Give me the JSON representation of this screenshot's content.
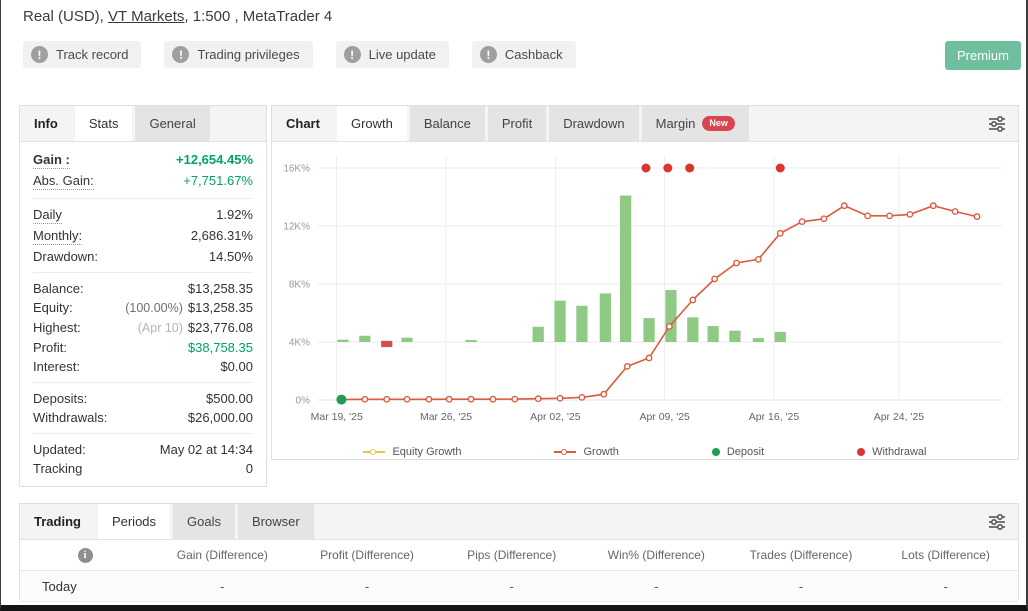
{
  "header": {
    "title_prefix": "Real (USD), ",
    "broker_link": "VT Markets",
    "title_suffix": ", 1:500 , MetaTrader 4",
    "badges": [
      "Track record",
      "Trading privileges",
      "Live update",
      "Cashback"
    ],
    "premium_label": "Premium"
  },
  "info_panel": {
    "tabs": [
      {
        "label": "Info",
        "type": "section"
      },
      {
        "label": "Stats",
        "state": "active"
      },
      {
        "label": "General",
        "state": "inactive"
      }
    ],
    "groups": [
      [
        {
          "label": "Gain :",
          "value": "+12,654.45%",
          "positive": true,
          "bold": true,
          "dotted": true
        },
        {
          "label": "Abs. Gain:",
          "value": "+7,751.67%",
          "positive": true,
          "dotted": true
        }
      ],
      [
        {
          "label": "Daily",
          "value": "1.92%",
          "dotted": true
        },
        {
          "label": "Monthly:",
          "value": "2,686.31%",
          "dotted": true
        },
        {
          "label": "Drawdown:",
          "value": "14.50%"
        }
      ],
      [
        {
          "label": "Balance:",
          "value": "$13,258.35"
        },
        {
          "label": "Equity:",
          "prefix": "(100.00%)",
          "prefix_dark": true,
          "value": "$13,258.35"
        },
        {
          "label": "Highest:",
          "prefix": "(Apr 10)",
          "value": "$23,776.08"
        },
        {
          "label": "Profit:",
          "value": "$38,758.35",
          "positive": true
        },
        {
          "label": "Interest:",
          "value": "$0.00"
        }
      ],
      [
        {
          "label": "Deposits:",
          "value": "$500.00"
        },
        {
          "label": "Withdrawals:",
          "value": "$26,000.00"
        }
      ],
      [
        {
          "label": "Updated:",
          "value": "May 02 at 14:34"
        },
        {
          "label": "Tracking",
          "value": "0"
        }
      ]
    ]
  },
  "chart_panel": {
    "tabs": [
      {
        "label": "Chart",
        "type": "section"
      },
      {
        "label": "Growth",
        "state": "active"
      },
      {
        "label": "Balance",
        "state": "inactive"
      },
      {
        "label": "Profit",
        "state": "inactive"
      },
      {
        "label": "Drawdown",
        "state": "inactive"
      },
      {
        "label": "Margin",
        "state": "inactive",
        "badge": "New"
      }
    ]
  },
  "chart_data": {
    "type": "line+bar",
    "title": "Growth",
    "grid": true,
    "x_axis": {
      "unit": "days since Mar 19 2025",
      "range": [
        -1.2,
        42.6
      ],
      "ticks": [
        {
          "d": 0,
          "label": "Mar 19, '25"
        },
        {
          "d": 7,
          "label": "Mar 26, '25"
        },
        {
          "d": 14,
          "label": "Apr 02, '25"
        },
        {
          "d": 21,
          "label": "Apr 09, '25"
        },
        {
          "d": 28,
          "label": "Apr 16, '25"
        },
        {
          "d": 36,
          "label": "Apr 24, '25"
        }
      ]
    },
    "y_axis": {
      "unit": "growth %",
      "range": [
        0,
        16000
      ],
      "ticks": [
        {
          "v": 0,
          "label": "0%"
        },
        {
          "v": 4000,
          "label": "4K%"
        },
        {
          "v": 8000,
          "label": "8K%"
        },
        {
          "v": 12000,
          "label": "12K%"
        },
        {
          "v": 16000,
          "label": "16K%"
        }
      ]
    },
    "growth_series": {
      "name": "Growth",
      "color": "#dd5a3c",
      "points": [
        [
          0.3,
          30
        ],
        [
          1.8,
          50
        ],
        [
          3.2,
          50
        ],
        [
          4.5,
          50
        ],
        [
          5.9,
          50
        ],
        [
          7.2,
          55
        ],
        [
          8.6,
          55
        ],
        [
          10,
          55
        ],
        [
          11.4,
          60
        ],
        [
          12.9,
          90
        ],
        [
          14.3,
          120
        ],
        [
          15.7,
          180
        ],
        [
          17.1,
          400
        ],
        [
          18.6,
          2320
        ],
        [
          20,
          2900
        ],
        [
          21.3,
          5070
        ],
        [
          22.8,
          6900
        ],
        [
          24.2,
          8350
        ],
        [
          25.6,
          9450
        ],
        [
          27,
          9700
        ],
        [
          28.4,
          11500
        ],
        [
          29.8,
          12300
        ],
        [
          31.2,
          12500
        ],
        [
          32.5,
          13400
        ],
        [
          34,
          12700
        ],
        [
          35.4,
          12700
        ],
        [
          36.7,
          12800
        ],
        [
          38.2,
          13400
        ],
        [
          39.6,
          13000
        ],
        [
          41,
          12650
        ]
      ]
    },
    "equity_bars": {
      "name": "Equity Growth",
      "baseline": 4000,
      "bar_width_days": 0.72,
      "positive_color": "#8fca85",
      "negative_color": "#d5504a",
      "positive": [
        [
          0.4,
          4160
        ],
        [
          1.8,
          4430
        ],
        [
          4.5,
          4300
        ],
        [
          8.6,
          4140
        ],
        [
          12.9,
          5050
        ],
        [
          14.3,
          6850
        ],
        [
          15.7,
          6500
        ],
        [
          17.2,
          7350
        ],
        [
          18.5,
          14100
        ],
        [
          20,
          5650
        ],
        [
          21.4,
          7580
        ],
        [
          22.8,
          5700
        ],
        [
          24.1,
          5100
        ],
        [
          25.5,
          4780
        ],
        [
          27,
          4270
        ],
        [
          28.4,
          4700
        ]
      ],
      "negative": [
        [
          3.2,
          3650,
          4080
        ]
      ]
    },
    "deposits": {
      "name": "Deposit",
      "color": "#1e9e4e",
      "points": [
        [
          0.3,
          30
        ]
      ]
    },
    "withdrawals": {
      "name": "Withdrawal",
      "color": "#d8362f",
      "points": [
        [
          19.8,
          16000
        ],
        [
          21.2,
          16000
        ],
        [
          22.6,
          16000
        ],
        [
          28.4,
          16000
        ]
      ]
    },
    "legend": [
      {
        "label": "Equity Growth",
        "swatch": "line",
        "color": "#e8c44d"
      },
      {
        "label": "Growth",
        "swatch": "line",
        "color": "#dd5a3c"
      },
      {
        "label": "Deposit",
        "swatch": "dot",
        "color": "#1e9e4e"
      },
      {
        "label": "Withdrawal",
        "swatch": "dot",
        "color": "#d8362f"
      }
    ]
  },
  "bottom_panel": {
    "tabs": [
      {
        "label": "Trading",
        "type": "section"
      },
      {
        "label": "Periods",
        "state": "active"
      },
      {
        "label": "Goals",
        "state": "inactive"
      },
      {
        "label": "Browser",
        "state": "inactive"
      }
    ],
    "table": {
      "columns": [
        "Gain (Difference)",
        "Profit (Difference)",
        "Pips (Difference)",
        "Win% (Difference)",
        "Trades (Difference)",
        "Lots (Difference)"
      ],
      "rows": [
        {
          "label": "Today",
          "cells": [
            "-",
            "-",
            "-",
            "-",
            "-",
            "-"
          ]
        }
      ]
    }
  }
}
